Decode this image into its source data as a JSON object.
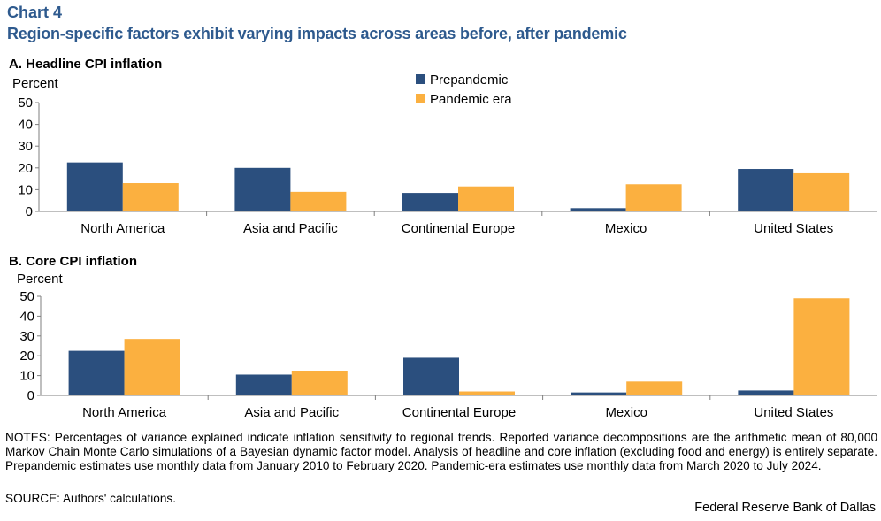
{
  "header": {
    "chart_label": "Chart 4",
    "title": "Region-specific factors exhibit varying impacts across areas before, after pandemic"
  },
  "colors": {
    "prepandemic": "#2b4f7e",
    "pandemic_era": "#fbb040",
    "axis": "#7f7f7f"
  },
  "chart_data": [
    {
      "type": "bar",
      "title": "A. Headline CPI inflation",
      "ylabel": "Percent",
      "ylim": [
        0,
        50
      ],
      "yticks": [
        "0",
        "10",
        "20",
        "30",
        "40",
        "50"
      ],
      "categories": [
        "North America",
        "Asia and Pacific",
        "Continental Europe",
        "Mexico",
        "United States"
      ],
      "series": [
        {
          "name": "Prepandemic",
          "values": [
            22.5,
            20,
            8.5,
            1.5,
            19.5
          ]
        },
        {
          "name": "Pandemic era",
          "values": [
            13,
            9,
            11.5,
            12.5,
            17.5
          ]
        }
      ],
      "legend": "top-center"
    },
    {
      "type": "bar",
      "title": "B. Core CPI inflation",
      "ylabel": "Percent",
      "ylim": [
        0,
        50
      ],
      "yticks": [
        "0",
        "10",
        "20",
        "30",
        "40",
        "50"
      ],
      "categories": [
        "North America",
        "Asia and Pacific",
        "Continental Europe",
        "Mexico",
        "United States"
      ],
      "series": [
        {
          "name": "Prepandemic",
          "values": [
            22.5,
            10.5,
            19,
            1.5,
            2.5
          ]
        },
        {
          "name": "Pandemic era",
          "values": [
            28.5,
            12.5,
            2,
            7,
            49
          ]
        }
      ]
    }
  ],
  "footer": {
    "notes": "NOTES: Percentages of variance explained indicate inflation sensitivity to regional trends. Reported variance decompositions are the arithmetic mean of 80,000 Markov Chain Monte Carlo simulations of a Bayesian dynamic factor model. Analysis of headline and core inflation (excluding food and energy) is entirely separate. Prepandemic estimates use monthly data from January 2010 to February 2020. Pandemic-era estimates use monthly data from March 2020 to July 2024.",
    "source": "SOURCE: Authors' calculations.",
    "credit": "Federal Reserve Bank of Dallas"
  }
}
